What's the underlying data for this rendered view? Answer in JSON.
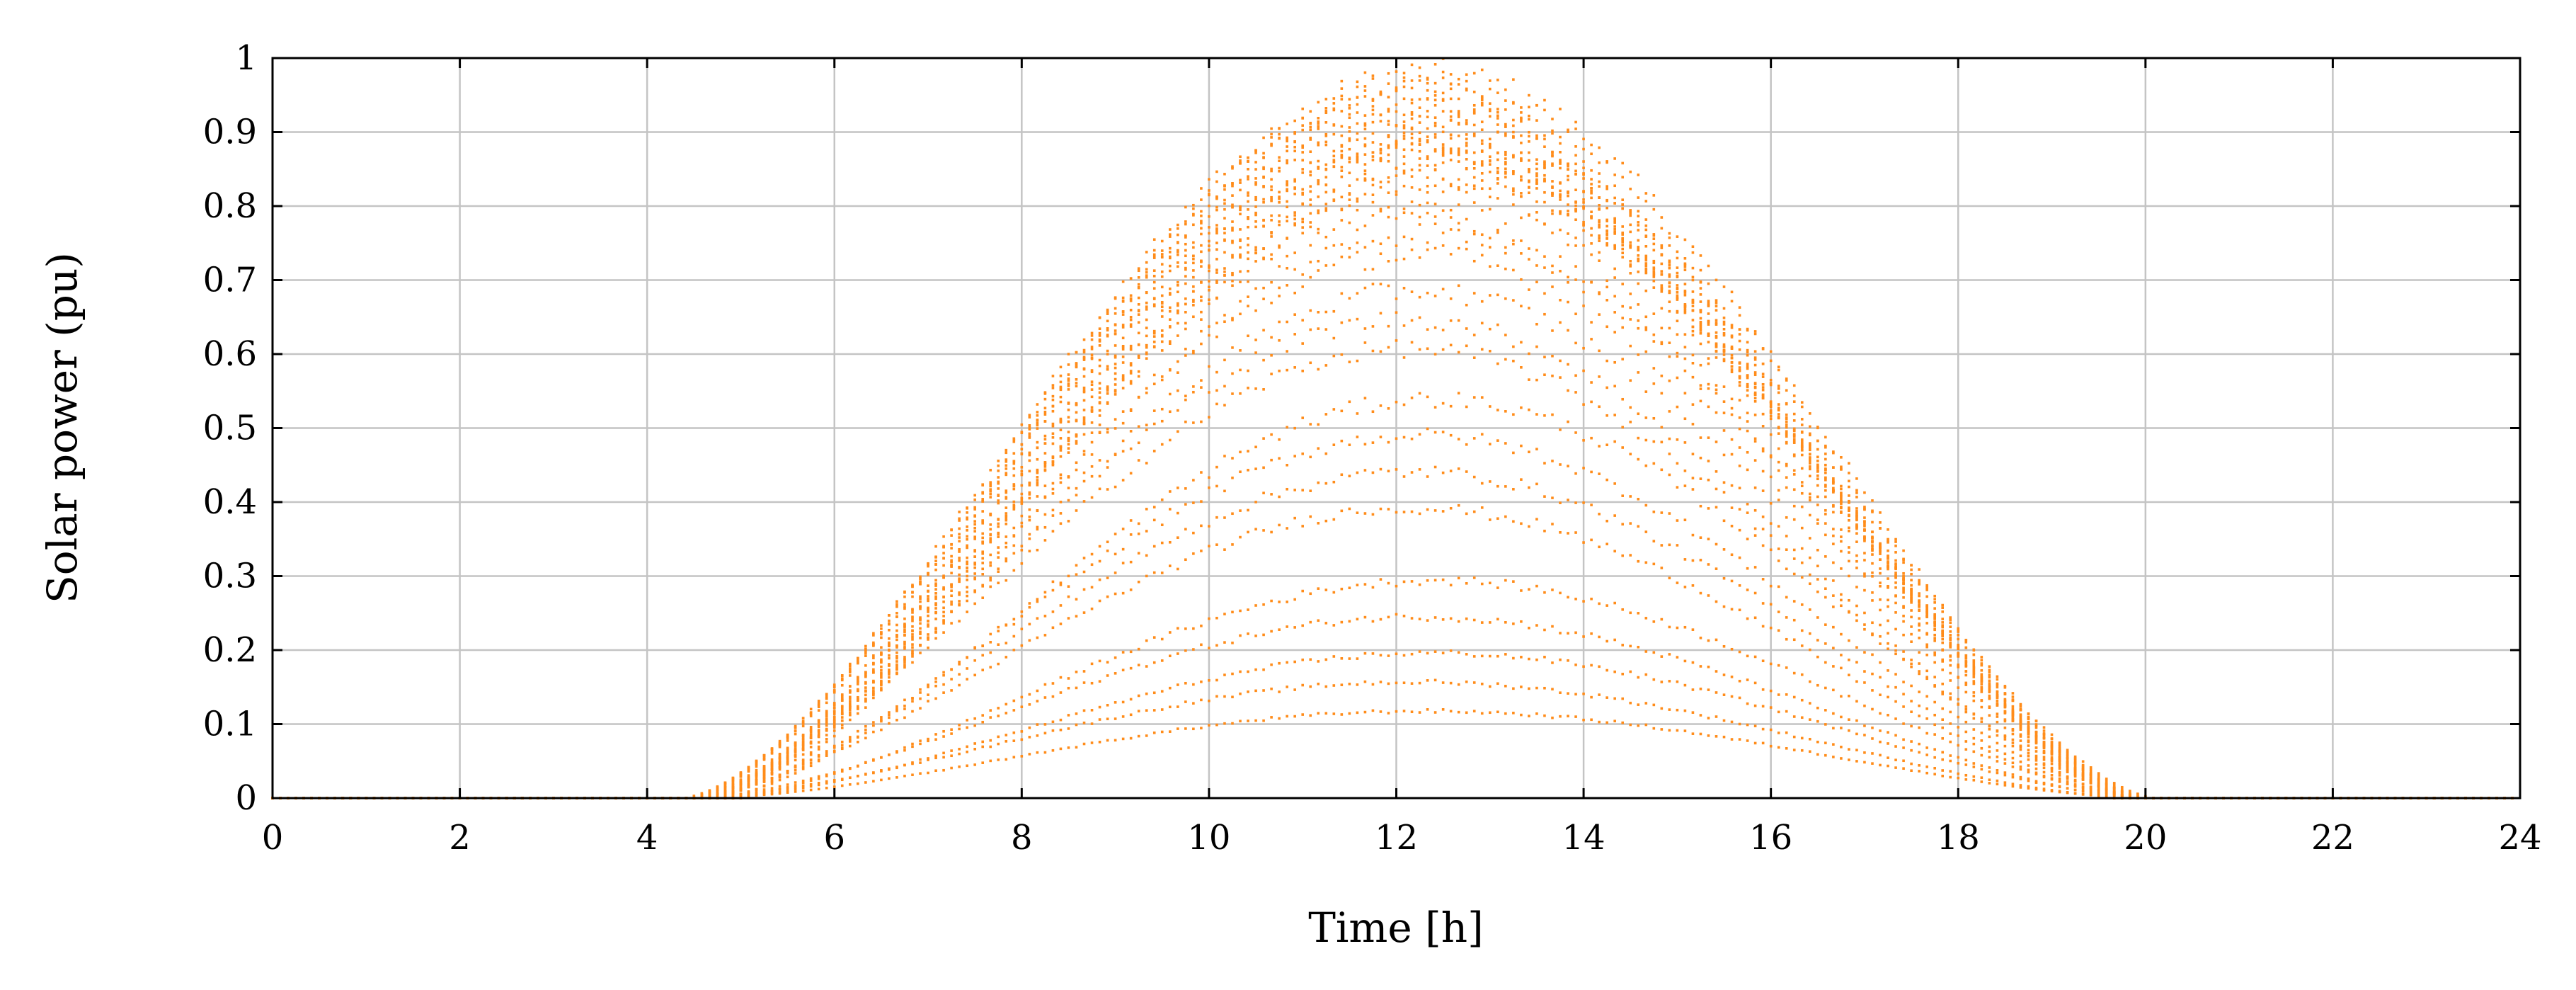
{
  "chart_data": {
    "type": "scatter",
    "title": "",
    "xlabel": "Time [h]",
    "ylabel": "Solar power (pu)",
    "xlim": [
      0,
      24
    ],
    "ylim": [
      0,
      1
    ],
    "xticks": [
      0,
      2,
      4,
      6,
      8,
      10,
      12,
      14,
      16,
      18,
      20,
      22,
      24
    ],
    "yticks": [
      0,
      0.1,
      0.2,
      0.3,
      0.4,
      0.5,
      0.6,
      0.7,
      0.8,
      0.9,
      1
    ],
    "ytick_labels": [
      "0",
      "0.1",
      "0.2",
      "0.3",
      "0.4",
      "0.5",
      "0.6",
      "0.7",
      "0.8",
      "0.9",
      "1"
    ],
    "grid": true,
    "legend": false,
    "marker_color": "#ff8c1a",
    "series": [
      {
        "points_described_by_daily_profiles": true,
        "sunrise_h": 4.6,
        "sunset_h": 20.0,
        "solar_noon_h": 12.5,
        "daily_peak_values": [
          1.0,
          0.99,
          0.98,
          0.97,
          0.96,
          0.95,
          0.94,
          0.93,
          0.92,
          0.91,
          0.91,
          0.9,
          0.9,
          0.89,
          0.88,
          0.87,
          0.86,
          0.85,
          0.83,
          0.8,
          0.78,
          0.75,
          0.7,
          0.66,
          0.62,
          0.55,
          0.5,
          0.45,
          0.4,
          0.3,
          0.25,
          0.2,
          0.16,
          0.12
        ]
      }
    ]
  }
}
